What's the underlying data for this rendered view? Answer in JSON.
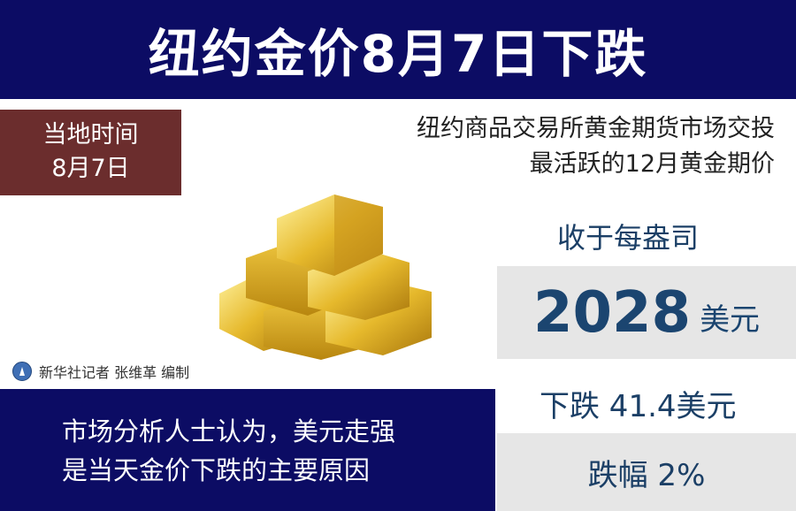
{
  "title": "纽约金价8月7日下跌",
  "date_box": {
    "line1": "当地时间",
    "line2": "8月7日"
  },
  "description": {
    "line1": "纽约商品交易所黄金期货市场交投",
    "line2": "最活跃的12月黄金期价"
  },
  "close_label": "收于每盎司",
  "price": {
    "value": "2028",
    "unit": "美元"
  },
  "drop": "下跌 41.4美元",
  "percent": "跌幅 2%",
  "credit": "新华社记者 张维革 编制",
  "analysis": {
    "line1": "市场分析人士认为，美元走强",
    "line2": "是当天金价下跌的主要原因"
  },
  "colors": {
    "navy": "#0c0c64",
    "brown": "#6b2d2d",
    "gray": "#e6e6e6",
    "text_blue": "#1b4570",
    "gold": "#e0b52a"
  },
  "icons": {
    "logo": "xinhua-logo-icon",
    "image": "gold-bars-image"
  }
}
